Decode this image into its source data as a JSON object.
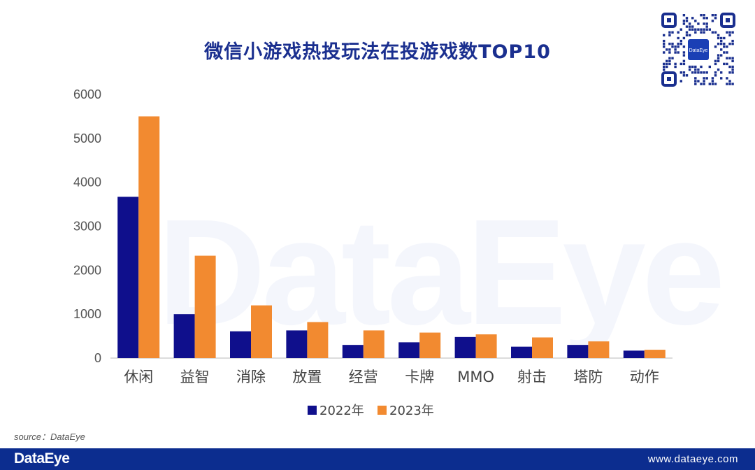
{
  "colors": {
    "series_2022": "#0f0f8c",
    "series_2023": "#f28a30",
    "title": "#1a2f8f",
    "footer_bg": "#0c2d8f"
  },
  "watermark": "DataEye",
  "qr_center_label": "DataEye",
  "chart_data": {
    "type": "bar",
    "title": "微信小游戏热投玩法在投游戏数TOP10",
    "categories": [
      "休闲",
      "益智",
      "消除",
      "放置",
      "经营",
      "卡牌",
      "MMO",
      "射击",
      "塔防",
      "动作"
    ],
    "series": [
      {
        "name": "2022年",
        "values": [
          3670,
          1000,
          610,
          630,
          300,
          360,
          480,
          260,
          300,
          170
        ]
      },
      {
        "name": "2023年",
        "values": [
          5500,
          2330,
          1200,
          820,
          630,
          580,
          540,
          470,
          380,
          190
        ]
      }
    ],
    "ylim": [
      0,
      6000
    ],
    "yticks": [
      0,
      1000,
      2000,
      3000,
      4000,
      5000,
      6000
    ],
    "xlabel": "",
    "ylabel": "",
    "grid": false,
    "legend": "bottom-center"
  },
  "source": "source：DataEye",
  "footer": {
    "brand": "DataEye",
    "url": "www.dataeye.com"
  }
}
